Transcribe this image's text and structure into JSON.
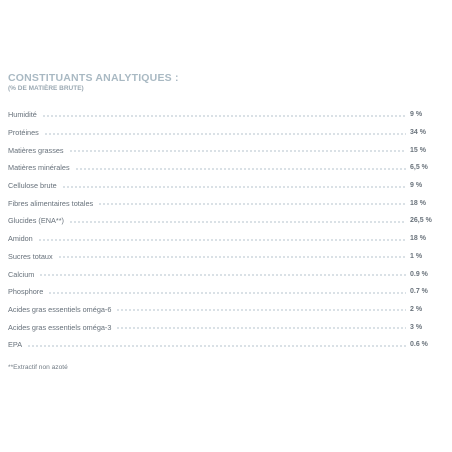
{
  "section": {
    "title": "CONSTITUANTS ANALYTIQUES :",
    "subtitle": "(% DE MATIÈRE BRUTE)"
  },
  "rows": [
    {
      "label": "Humidité",
      "value": "9 %"
    },
    {
      "label": "Protéines",
      "value": "34 %"
    },
    {
      "label": "Matières grasses",
      "value": "15 %"
    },
    {
      "label": "Matières minérales",
      "value": "6,5 %"
    },
    {
      "label": "Cellulose brute",
      "value": "9 %"
    },
    {
      "label": "Fibres alimentaires totales",
      "value": "18 %"
    },
    {
      "label": "Glucides (ENA**)",
      "value": "26,5 %"
    },
    {
      "label": "Amidon",
      "value": "18 %"
    },
    {
      "label": "Sucres totaux",
      "value": "1 %"
    },
    {
      "label": "Calcium",
      "value": "0.9 %"
    },
    {
      "label": "Phosphore",
      "value": "0.7 %"
    },
    {
      "label": "Acides gras essentiels oméga-6",
      "value": "2 %"
    },
    {
      "label": "Acides gras essentiels oméga-3",
      "value": "3 %"
    },
    {
      "label": "EPA",
      "value": "0.6 %"
    }
  ],
  "footnote": "**Extractif non azoté",
  "colors": {
    "title": "#a9b9c3",
    "text": "#66707a",
    "dots": "#b9c6cf"
  }
}
